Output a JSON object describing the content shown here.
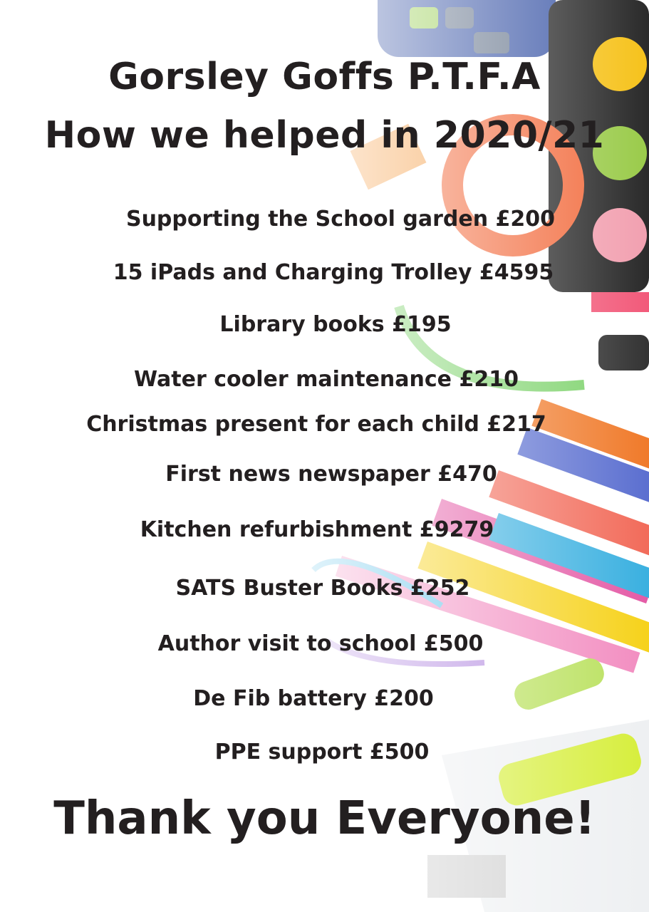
{
  "title": {
    "line1": "Gorsley Goffs P.T.F.A",
    "line2": "How we helped in 2020/21"
  },
  "items": [
    {
      "text": "Supporting the School garden £200"
    },
    {
      "text": "15 iPads and Charging Trolley £4595"
    },
    {
      "text": "Library books £195"
    },
    {
      "text": "Water cooler maintenance £210"
    },
    {
      "text": "Christmas present for each child £217"
    },
    {
      "text": "First news newspaper £470"
    },
    {
      "text": "Kitchen refurbishment £9279"
    },
    {
      "text": "SATS Buster Books £252"
    },
    {
      "text": "Author visit to school £500"
    },
    {
      "text": "De Fib battery £200"
    },
    {
      "text": "PPE support £500"
    }
  ],
  "footer": {
    "thanks": "Thank you Everyone!"
  },
  "colors": {
    "text": "#231f20",
    "background": "#ffffff"
  }
}
